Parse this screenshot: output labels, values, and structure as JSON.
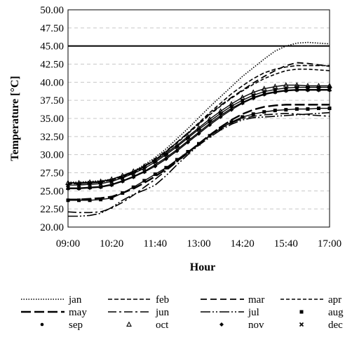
{
  "chart_data": {
    "type": "line",
    "xlabel": "Hour",
    "ylabel": "Temperature [°C]",
    "x_ticks": [
      "09:00",
      "10:20",
      "11:40",
      "13:00",
      "14:20",
      "15:40",
      "17:00"
    ],
    "y_ticks": [
      "20.00",
      "22.50",
      "25.00",
      "27.50",
      "30.00",
      "32.50",
      "35.00",
      "37.50",
      "40.00",
      "42.50",
      "45.00",
      "47.50",
      "50.00"
    ],
    "ylim": [
      20,
      50
    ],
    "grid": "horizontal dashed",
    "legend_position": "bottom",
    "reference_line": {
      "y": 45
    },
    "x": [
      "09:00",
      "09:20",
      "09:40",
      "10:00",
      "10:20",
      "10:40",
      "11:00",
      "11:20",
      "11:40",
      "12:00",
      "12:20",
      "12:40",
      "13:00",
      "13:20",
      "13:40",
      "14:00",
      "14:20",
      "14:40",
      "15:00",
      "15:20",
      "15:40",
      "16:00",
      "16:20",
      "16:40",
      "17:00"
    ],
    "series": [
      {
        "name": "jan",
        "values": [
          26.2,
          26.2,
          26.3,
          26.4,
          26.6,
          27.1,
          27.7,
          28.6,
          29.6,
          30.8,
          32.2,
          33.6,
          35.1,
          36.6,
          38.0,
          39.4,
          40.8,
          42.0,
          43.2,
          44.3,
          45.0,
          45.4,
          45.5,
          45.4,
          45.3
        ]
      },
      {
        "name": "feb",
        "values": [
          26.0,
          26.0,
          26.1,
          26.2,
          26.5,
          27.0,
          27.6,
          28.4,
          29.3,
          30.4,
          31.7,
          33.0,
          34.4,
          35.8,
          37.1,
          38.4,
          39.5,
          40.5,
          41.3,
          41.8,
          42.1,
          42.3,
          42.3,
          42.3,
          42.3
        ]
      },
      {
        "name": "mar",
        "values": [
          26.1,
          26.1,
          26.2,
          26.3,
          26.6,
          27.0,
          27.6,
          28.4,
          29.4,
          30.5,
          31.7,
          33.0,
          34.3,
          35.6,
          36.8,
          37.9,
          38.9,
          39.9,
          40.8,
          41.6,
          42.3,
          42.7,
          42.6,
          42.4,
          42.2
        ]
      },
      {
        "name": "apr",
        "values": [
          26.0,
          26.0,
          26.1,
          26.2,
          26.5,
          26.9,
          27.5,
          28.3,
          29.3,
          30.4,
          31.6,
          32.9,
          34.2,
          35.5,
          36.7,
          37.8,
          38.8,
          39.7,
          40.5,
          41.1,
          41.6,
          41.8,
          41.8,
          41.7,
          41.6
        ]
      },
      {
        "name": "may",
        "values": [
          23.8,
          23.8,
          23.9,
          24.0,
          24.2,
          24.7,
          25.3,
          26.1,
          27.0,
          28.0,
          29.1,
          30.3,
          31.5,
          32.7,
          33.8,
          34.8,
          35.6,
          36.2,
          36.6,
          36.8,
          36.9,
          36.9,
          36.9,
          36.9,
          36.9
        ]
      },
      {
        "name": "jun",
        "values": [
          22.1,
          22.0,
          22.0,
          22.1,
          22.6,
          23.4,
          24.4,
          25.5,
          26.6,
          27.8,
          29.0,
          30.2,
          31.4,
          32.6,
          33.6,
          34.4,
          35.0,
          35.3,
          35.5,
          35.6,
          35.7,
          35.6,
          35.5,
          35.4,
          35.3
        ]
      },
      {
        "name": "jul",
        "values": [
          21.5,
          21.5,
          21.6,
          21.9,
          22.7,
          23.7,
          24.5,
          25.1,
          25.8,
          27.1,
          28.6,
          30.0,
          31.3,
          32.4,
          33.4,
          34.2,
          34.8,
          35.1,
          35.2,
          35.3,
          35.4,
          35.5,
          35.6,
          35.7,
          35.8
        ]
      },
      {
        "name": "aug",
        "values": [
          23.7,
          23.7,
          23.7,
          23.8,
          24.0,
          24.7,
          25.5,
          26.4,
          27.3,
          28.2,
          29.3,
          30.4,
          31.5,
          32.6,
          33.6,
          34.5,
          35.2,
          35.6,
          35.9,
          36.1,
          36.2,
          36.3,
          36.3,
          36.4,
          36.4
        ]
      },
      {
        "name": "sep",
        "values": [
          25.8,
          25.8,
          25.9,
          26.0,
          26.3,
          26.8,
          27.4,
          28.1,
          29.0,
          30.0,
          31.1,
          32.3,
          33.5,
          34.6,
          35.7,
          36.7,
          37.5,
          38.2,
          38.7,
          39.0,
          39.2,
          39.3,
          39.3,
          39.3,
          39.3
        ]
      },
      {
        "name": "oct",
        "values": [
          26.1,
          26.1,
          26.2,
          26.3,
          26.6,
          27.1,
          27.7,
          28.4,
          29.2,
          30.2,
          31.3,
          32.5,
          33.7,
          34.9,
          36.0,
          37.0,
          37.9,
          38.6,
          39.1,
          39.4,
          39.6,
          39.6,
          39.5,
          39.5,
          39.5
        ]
      },
      {
        "name": "nov",
        "values": [
          25.3,
          25.3,
          25.4,
          25.5,
          25.8,
          26.3,
          26.9,
          27.6,
          28.4,
          29.4,
          30.5,
          31.7,
          32.9,
          34.1,
          35.2,
          36.2,
          37.1,
          37.8,
          38.3,
          38.6,
          38.8,
          38.9,
          38.9,
          38.9,
          38.9
        ]
      },
      {
        "name": "dec",
        "values": [
          25.4,
          25.4,
          25.5,
          25.6,
          25.9,
          26.4,
          27.0,
          27.7,
          28.6,
          29.6,
          30.7,
          31.9,
          33.1,
          34.3,
          35.4,
          36.4,
          37.2,
          37.9,
          38.4,
          38.7,
          38.9,
          39.0,
          39.0,
          39.0,
          39.0
        ]
      }
    ]
  }
}
